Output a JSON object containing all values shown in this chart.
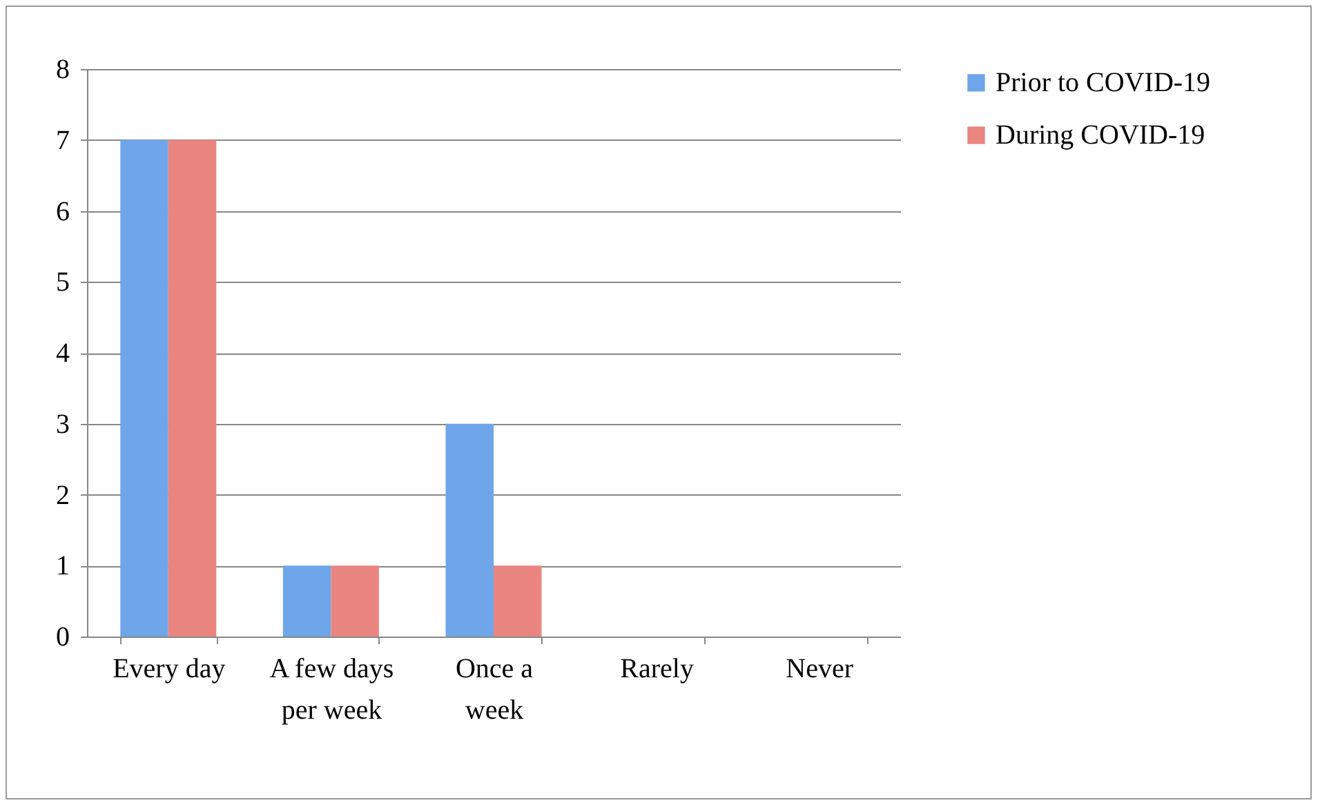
{
  "chart_data": {
    "type": "bar",
    "categories": [
      "Every day",
      "A few days per week",
      "Once a week",
      "Rarely",
      "Never"
    ],
    "series": [
      {
        "name": "Prior to COVID-19",
        "color": "#6fa6ea",
        "values": [
          7,
          1,
          3,
          0,
          0
        ]
      },
      {
        "name": "During COVID-19",
        "color": "#ea8580",
        "values": [
          7,
          1,
          1,
          0,
          0
        ]
      }
    ],
    "ylim": [
      0,
      8
    ],
    "yticks": [
      0,
      1,
      2,
      3,
      4,
      5,
      6,
      7,
      8
    ],
    "grid": "y",
    "legend": "right"
  }
}
